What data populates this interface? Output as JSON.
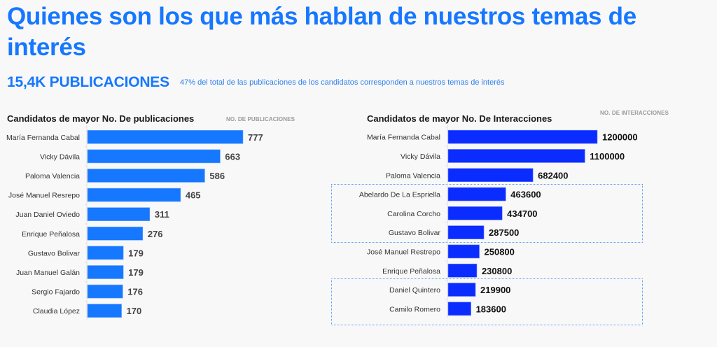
{
  "header": {
    "title": "Quienes son los que más hablan de nuestros temas de interés",
    "kpi_value": "15,4K PUBLICACIONES",
    "kpi_note": "47% del total de las publicaciones de los candidatos corresponden a nuestros temas de interés"
  },
  "colors": {
    "accent": "#1677ff",
    "publicaciones_bar": "#1677ff",
    "interacciones_bar": "#0a2cff",
    "highlight_border": "#5b9cf0"
  },
  "chart_data": [
    {
      "type": "bar",
      "orientation": "horizontal",
      "title": "Candidatos de mayor No. De publicaciones",
      "value_label": "NO. DE PUBLICACIONES",
      "categories": [
        "María Fernanda Cabal",
        "Vicky Dávila",
        "Paloma Valencia",
        "José Manuel Resrepo",
        "Juan Daniel Oviedo",
        "Enrique Peñalosa",
        "Gustavo Bolivar",
        "Juan Manuel Galán",
        "Sergio Fajardo",
        "Claudia López"
      ],
      "values": [
        777,
        663,
        586,
        465,
        311,
        276,
        179,
        179,
        176,
        170
      ],
      "xlim": [
        0,
        777
      ],
      "grid": false,
      "data_labels": true
    },
    {
      "type": "bar",
      "orientation": "horizontal",
      "title": "Candidatos de mayor No. De Interacciones",
      "value_label": "NO. DE INTERACCIONES",
      "categories": [
        "María Fernanda Cabal",
        "Vicky Dávila",
        "Paloma Valencia",
        "Abelardo De La Espriella",
        "Carolina Corcho",
        "Gustavo Bolivar",
        "José Manuel Restrepo",
        "Enrique Peñalosa",
        "Daniel Quintero",
        "Camilo Romero"
      ],
      "values": [
        1200000,
        1100000,
        682400,
        463600,
        434700,
        287500,
        250800,
        230800,
        219900,
        183600
      ],
      "xlim": [
        0,
        1200000
      ],
      "grid": false,
      "data_labels": true,
      "highlight_groups": [
        [
          "Abelardo De La Espriella",
          "Carolina Corcho",
          "Gustavo Bolivar"
        ],
        [
          "Daniel Quintero",
          "Camilo Romero"
        ]
      ]
    }
  ]
}
